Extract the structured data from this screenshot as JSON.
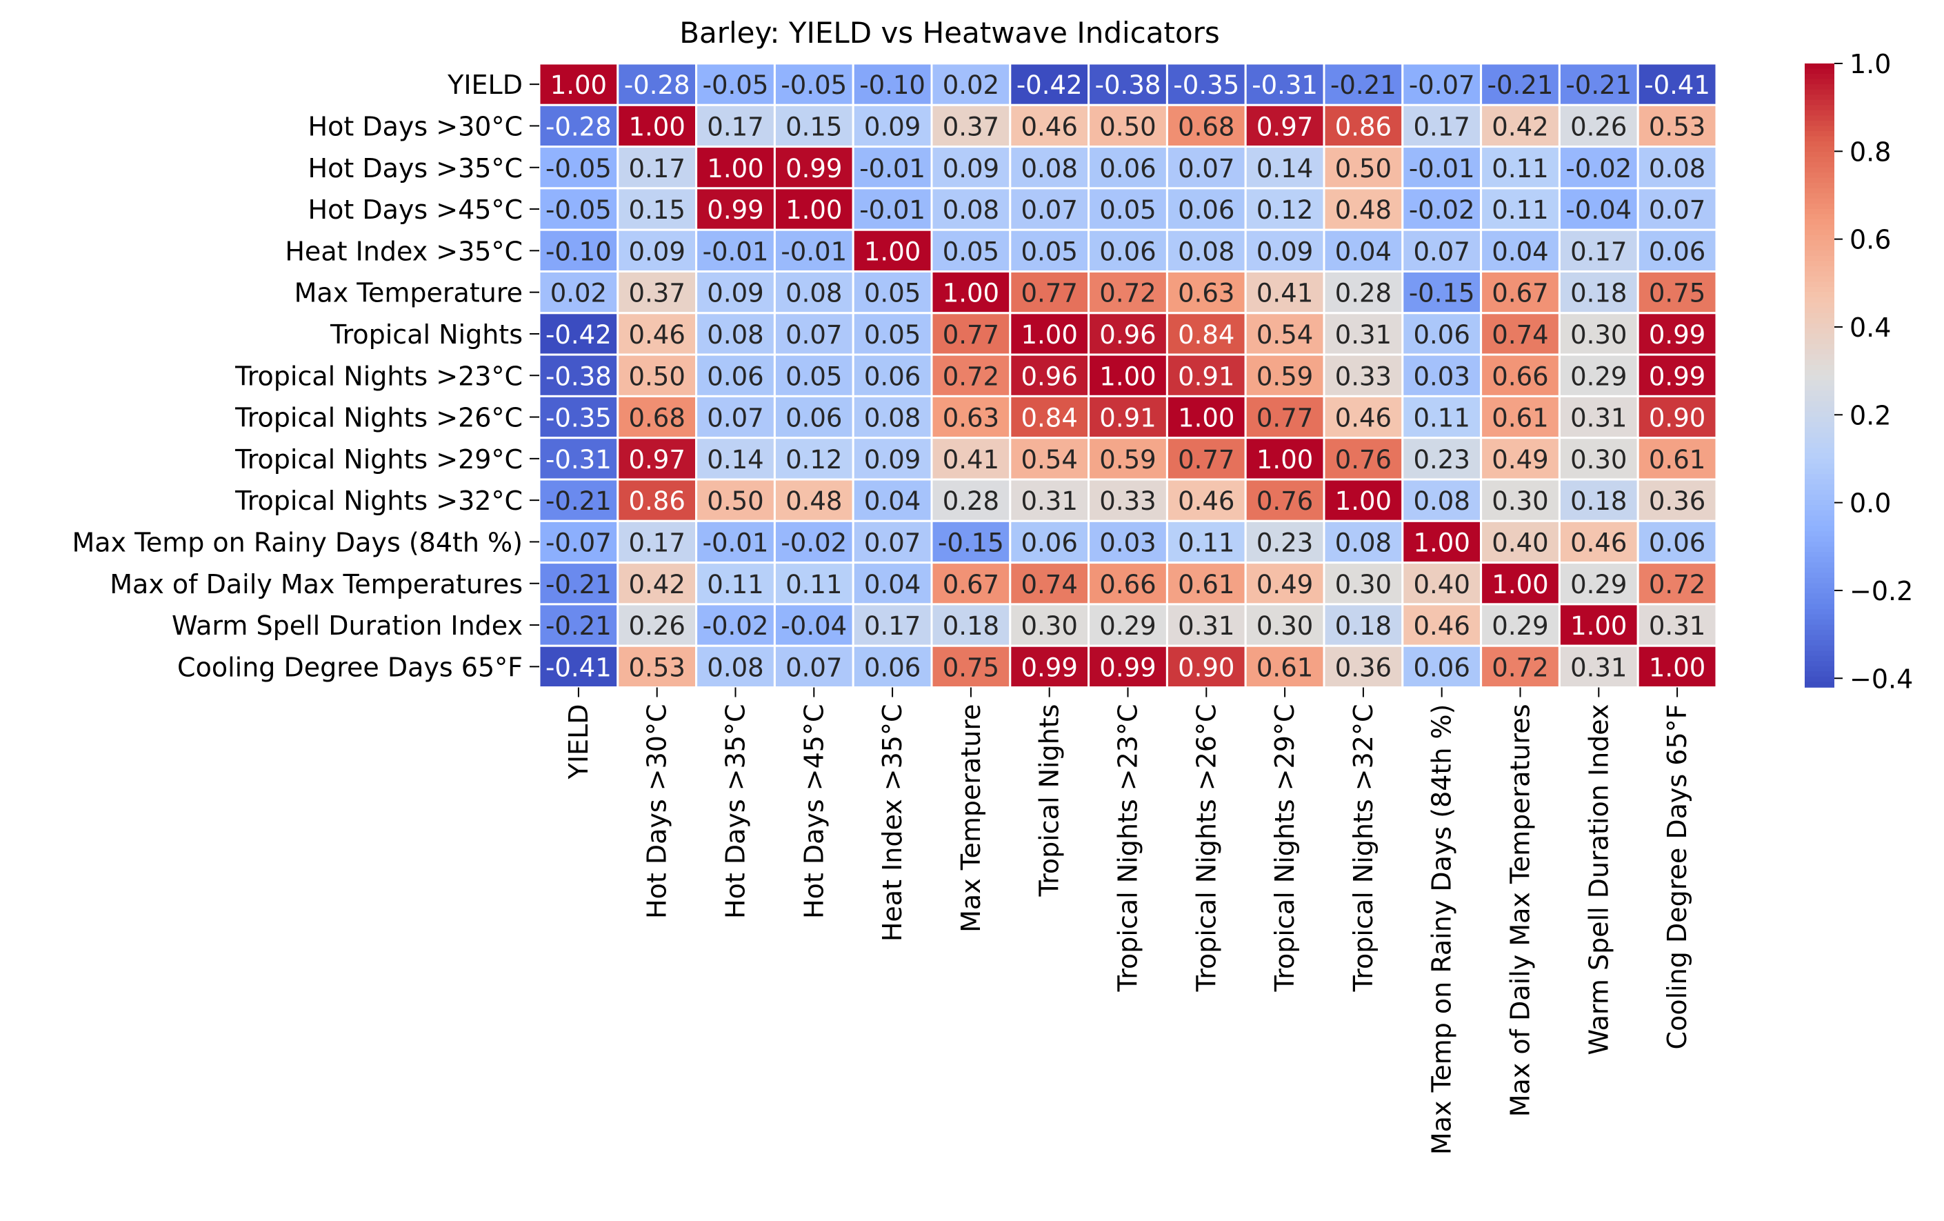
{
  "chart_data": {
    "type": "heatmap",
    "title": "Barley: YIELD vs Heatwave Indicators",
    "xlabel": "",
    "ylabel": "",
    "labels": [
      "YIELD",
      "Hot Days >30°C",
      "Hot Days >35°C",
      "Hot Days >45°C",
      "Heat Index >35°C",
      "Max Temperature",
      "Tropical Nights",
      "Tropical Nights >23°C",
      "Tropical Nights >26°C",
      "Tropical Nights >29°C",
      "Tropical Nights >32°C",
      "Max Temp on Rainy Days (84th %)",
      "Max of Daily Max Temperatures",
      "Warm Spell Duration Index",
      "Cooling Degree Days 65°F"
    ],
    "matrix": [
      [
        1.0,
        -0.28,
        -0.05,
        -0.05,
        -0.1,
        0.02,
        -0.42,
        -0.38,
        -0.35,
        -0.31,
        -0.21,
        -0.07,
        -0.21,
        -0.21,
        -0.41
      ],
      [
        -0.28,
        1.0,
        0.17,
        0.15,
        0.09,
        0.37,
        0.46,
        0.5,
        0.68,
        0.97,
        0.86,
        0.17,
        0.42,
        0.26,
        0.53
      ],
      [
        -0.05,
        0.17,
        1.0,
        0.99,
        -0.01,
        0.09,
        0.08,
        0.06,
        0.07,
        0.14,
        0.5,
        -0.01,
        0.11,
        -0.02,
        0.08
      ],
      [
        -0.05,
        0.15,
        0.99,
        1.0,
        -0.01,
        0.08,
        0.07,
        0.05,
        0.06,
        0.12,
        0.48,
        -0.02,
        0.11,
        -0.04,
        0.07
      ],
      [
        -0.1,
        0.09,
        -0.01,
        -0.01,
        1.0,
        0.05,
        0.05,
        0.06,
        0.08,
        0.09,
        0.04,
        0.07,
        0.04,
        0.17,
        0.06
      ],
      [
        0.02,
        0.37,
        0.09,
        0.08,
        0.05,
        1.0,
        0.77,
        0.72,
        0.63,
        0.41,
        0.28,
        -0.15,
        0.67,
        0.18,
        0.75
      ],
      [
        -0.42,
        0.46,
        0.08,
        0.07,
        0.05,
        0.77,
        1.0,
        0.96,
        0.84,
        0.54,
        0.31,
        0.06,
        0.74,
        0.3,
        0.99
      ],
      [
        -0.38,
        0.5,
        0.06,
        0.05,
        0.06,
        0.72,
        0.96,
        1.0,
        0.91,
        0.59,
        0.33,
        0.03,
        0.66,
        0.29,
        0.99
      ],
      [
        -0.35,
        0.68,
        0.07,
        0.06,
        0.08,
        0.63,
        0.84,
        0.91,
        1.0,
        0.77,
        0.46,
        0.11,
        0.61,
        0.31,
        0.9
      ],
      [
        -0.31,
        0.97,
        0.14,
        0.12,
        0.09,
        0.41,
        0.54,
        0.59,
        0.77,
        1.0,
        0.76,
        0.23,
        0.49,
        0.3,
        0.61
      ],
      [
        -0.21,
        0.86,
        0.5,
        0.48,
        0.04,
        0.28,
        0.31,
        0.33,
        0.46,
        0.76,
        1.0,
        0.08,
        0.3,
        0.18,
        0.36
      ],
      [
        -0.07,
        0.17,
        -0.01,
        -0.02,
        0.07,
        -0.15,
        0.06,
        0.03,
        0.11,
        0.23,
        0.08,
        1.0,
        0.4,
        0.46,
        0.06
      ],
      [
        -0.21,
        0.42,
        0.11,
        0.11,
        0.04,
        0.67,
        0.74,
        0.66,
        0.61,
        0.49,
        0.3,
        0.4,
        1.0,
        0.29,
        0.72
      ],
      [
        -0.21,
        0.26,
        -0.02,
        -0.04,
        0.17,
        0.18,
        0.3,
        0.29,
        0.31,
        0.3,
        0.18,
        0.46,
        0.29,
        1.0,
        0.31
      ],
      [
        -0.41,
        0.53,
        0.08,
        0.07,
        0.06,
        0.75,
        0.99,
        0.99,
        0.9,
        0.61,
        0.36,
        0.06,
        0.72,
        0.31,
        1.0
      ]
    ],
    "colorscale": "coolwarm",
    "value_range": [
      -0.42,
      1.0
    ],
    "colorbar_ticks": [
      1.0,
      0.8,
      0.6,
      0.4,
      0.2,
      0.0,
      -0.2,
      -0.4
    ],
    "colorbar_tick_labels": [
      "1.0",
      "0.8",
      "0.6",
      "0.4",
      "0.2",
      "0.0",
      "−0.2",
      "−0.4"
    ],
    "legend_placement": "right",
    "grid": false
  }
}
